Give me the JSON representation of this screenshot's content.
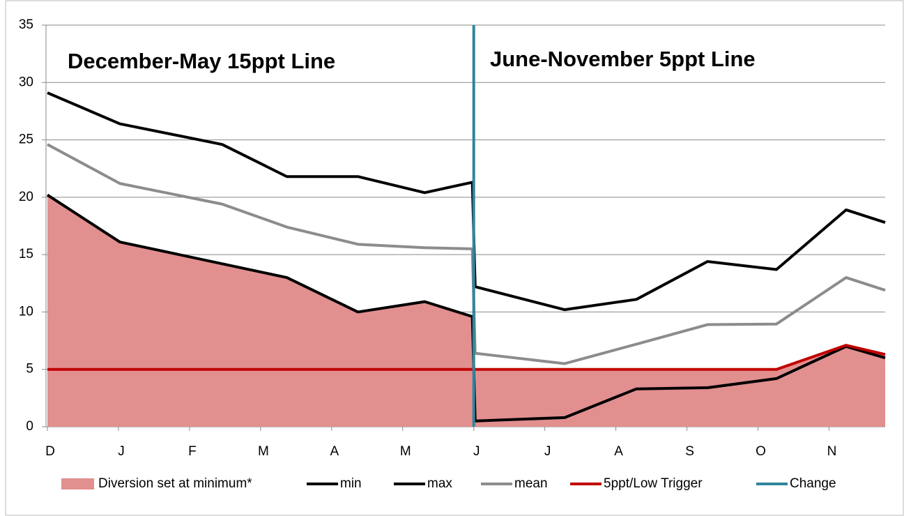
{
  "chart_data": {
    "type": "line",
    "annotations": [
      "December-May 15ppt Line",
      "June-November 5ppt Line"
    ],
    "x": [
      0,
      1.02,
      2.46,
      3.37,
      4.37,
      5.31,
      5.98,
      6.02,
      7.28,
      8.29,
      9.29,
      10.26,
      11.24,
      11.79
    ],
    "xlim": [
      0,
      11.79
    ],
    "xticks": [
      {
        "value": 0,
        "label": "D"
      },
      {
        "value": 1,
        "label": "J"
      },
      {
        "value": 2,
        "label": "F"
      },
      {
        "value": 3,
        "label": "M"
      },
      {
        "value": 4,
        "label": "A"
      },
      {
        "value": 5,
        "label": "M"
      },
      {
        "value": 6,
        "label": "J"
      },
      {
        "value": 7,
        "label": "J"
      },
      {
        "value": 8,
        "label": "A"
      },
      {
        "value": 9,
        "label": "S"
      },
      {
        "value": 10,
        "label": "O"
      },
      {
        "value": 11,
        "label": "N"
      }
    ],
    "ylim": [
      0,
      35
    ],
    "yticks": [
      0,
      5,
      10,
      15,
      20,
      25,
      30,
      35
    ],
    "grid": true,
    "series": [
      {
        "name": "Diversion set at minimum*",
        "kind": "area",
        "color": "#e28f8f",
        "values": [
          20.2,
          16.1,
          14.2,
          13.0,
          10.0,
          10.9,
          9.6,
          5,
          5,
          5,
          5,
          5,
          7.1,
          6.3
        ]
      },
      {
        "name": "min",
        "kind": "line",
        "color": "#000000",
        "values": [
          20.2,
          16.1,
          14.2,
          13.0,
          10.0,
          10.9,
          9.6,
          0.5,
          0.8,
          3.3,
          3.4,
          4.2,
          7.0,
          6.0
        ]
      },
      {
        "name": "max",
        "kind": "line",
        "color": "#000000",
        "values": [
          29.1,
          26.4,
          24.6,
          21.8,
          21.8,
          20.4,
          21.3,
          12.2,
          10.2,
          11.1,
          14.4,
          13.7,
          18.9,
          17.8
        ]
      },
      {
        "name": "mean",
        "kind": "line",
        "color": "#8c8c8c",
        "values": [
          24.6,
          21.2,
          19.4,
          17.4,
          15.9,
          15.6,
          15.5,
          6.4,
          5.5,
          7.2,
          8.9,
          8.95,
          13.0,
          11.9
        ]
      },
      {
        "name": "5ppt/Low Trigger",
        "kind": "line",
        "color": "#c00000",
        "values": [
          5,
          5,
          5,
          5,
          5,
          5,
          5,
          5,
          5,
          5,
          5,
          5,
          7.1,
          6.3
        ]
      },
      {
        "name": "Change",
        "kind": "line",
        "color": "#31859c",
        "x": [
          6,
          6
        ],
        "values": [
          35,
          0
        ]
      }
    ]
  }
}
